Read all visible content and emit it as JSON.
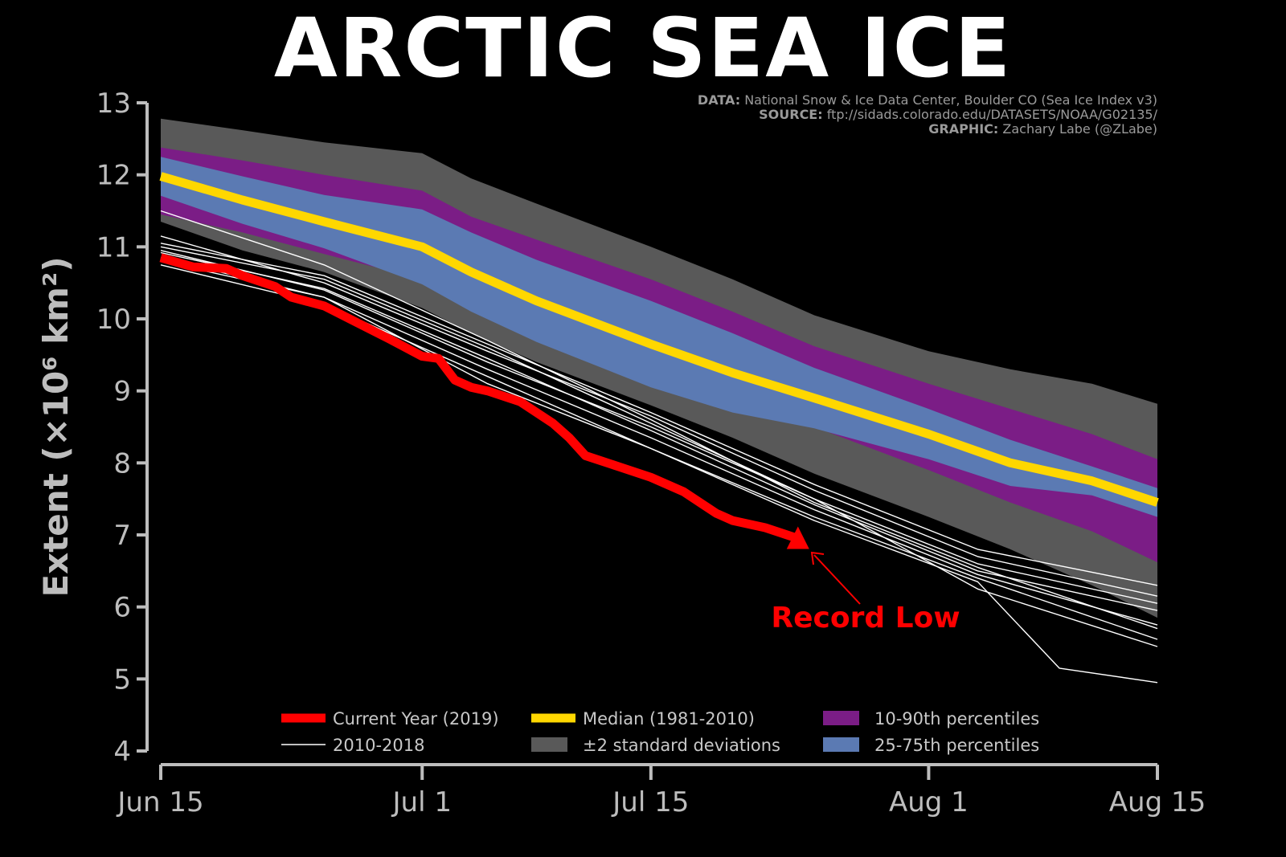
{
  "title": "ARCTIC SEA ICE",
  "credits": {
    "data_label": "DATA:",
    "data_text": "National Snow & Ice Data Center, Boulder CO (Sea Ice Index v3)",
    "source_label": "SOURCE:",
    "source_text": "ftp://sidads.colorado.edu/DATASETS/NOAA/G02135/",
    "graphic_label": "GRAPHIC:",
    "graphic_text": "Zachary Labe (@ZLabe)"
  },
  "annotation": "Record Low",
  "colors": {
    "background": "#000000",
    "current": "#ff0000",
    "median": "#ffd700",
    "p10_90": "#7b1d86",
    "p25_75": "#5b7ab3",
    "std2": "#595959",
    "recent": "#ffffff",
    "axis": "#bdbdbd"
  },
  "chart_data": {
    "type": "line",
    "ylabel": "Extent (×10⁶ km²)",
    "ylim": [
      4,
      13
    ],
    "yticks": [
      4,
      5,
      6,
      7,
      8,
      9,
      10,
      11,
      12,
      13
    ],
    "xlim": [
      0,
      61
    ],
    "xtick_values": [
      0,
      16,
      30,
      47,
      61
    ],
    "xtick_labels": [
      "Jun 15",
      "Jul 1",
      "Jul 15",
      "Aug 1",
      "Aug 15"
    ],
    "x_axis": "day of year, Jun 15 through Aug 15",
    "grid": false,
    "legend_position": "bottom",
    "legend": [
      {
        "label": "Current Year (2019)",
        "kind": "line",
        "color": "#ff0000",
        "width": "thick"
      },
      {
        "label": "2010-2018",
        "kind": "line",
        "color": "#ffffff",
        "width": "thin"
      },
      {
        "label": "Median (1981-2010)",
        "kind": "line",
        "color": "#ffd700",
        "width": "thick"
      },
      {
        "label": "±2 standard deviations",
        "kind": "patch",
        "color": "#595959"
      },
      {
        "label": "10-90th percentiles",
        "kind": "patch",
        "color": "#7b1d86"
      },
      {
        "label": "25-75th percentiles",
        "kind": "patch",
        "color": "#5b7ab3"
      }
    ],
    "bands_x": [
      0,
      5,
      10,
      16,
      19,
      23,
      30,
      35,
      40,
      47,
      52,
      57,
      61
    ],
    "std2_band": {
      "upper": [
        12.78,
        12.62,
        12.45,
        12.3,
        11.95,
        11.6,
        11.0,
        10.55,
        10.05,
        9.55,
        9.3,
        9.1,
        8.82
      ],
      "lower": [
        11.35,
        10.95,
        10.65,
        10.15,
        9.8,
        9.4,
        8.8,
        8.35,
        7.85,
        7.25,
        6.8,
        6.3,
        5.85
      ]
    },
    "p10_90_band": {
      "upper": [
        12.38,
        12.2,
        12.0,
        11.78,
        11.42,
        11.1,
        10.55,
        10.1,
        9.62,
        9.1,
        8.75,
        8.4,
        8.05
      ],
      "lower": [
        11.45,
        11.2,
        10.9,
        10.55,
        10.3,
        10.05,
        9.45,
        9.0,
        8.5,
        7.9,
        7.45,
        7.05,
        6.62
      ]
    },
    "p25_75_band": {
      "upper": [
        12.25,
        11.98,
        11.72,
        11.52,
        11.2,
        10.82,
        10.25,
        9.8,
        9.32,
        8.75,
        8.32,
        7.95,
        7.65
      ]
    },
    "median": {
      "x": [
        0,
        5,
        10,
        16,
        19,
        23,
        30,
        35,
        40,
        47,
        52,
        57,
        61
      ],
      "y": [
        11.98,
        11.65,
        11.35,
        11.0,
        10.65,
        10.25,
        9.65,
        9.25,
        8.9,
        8.4,
        8.0,
        7.75,
        7.45
      ]
    },
    "current_year": {
      "name": "Current Year (2019)",
      "x": [
        0,
        2,
        4,
        5,
        7,
        8,
        10,
        12,
        14,
        16,
        17,
        18,
        19,
        20,
        22,
        24,
        25,
        26,
        28,
        30,
        32,
        34,
        35,
        37,
        39
      ],
      "y": [
        10.85,
        10.72,
        10.7,
        10.6,
        10.45,
        10.3,
        10.18,
        9.95,
        9.72,
        9.48,
        9.45,
        9.15,
        9.05,
        9.0,
        8.85,
        8.55,
        8.35,
        8.1,
        7.95,
        7.8,
        7.6,
        7.3,
        7.2,
        7.1,
        6.95
      ]
    },
    "recent_years": [
      {
        "x": [
          0,
          10,
          20,
          30,
          40,
          50,
          61
        ],
        "y": [
          11.0,
          10.55,
          9.6,
          8.55,
          7.5,
          6.6,
          6.05
        ]
      },
      {
        "x": [
          0,
          10,
          20,
          30,
          40,
          50,
          61
        ],
        "y": [
          10.92,
          10.42,
          9.45,
          8.45,
          7.42,
          6.5,
          5.95
        ]
      },
      {
        "x": [
          0,
          10,
          20,
          30,
          40,
          50,
          61
        ],
        "y": [
          10.8,
          10.3,
          9.3,
          8.35,
          7.35,
          6.45,
          5.75
        ]
      },
      {
        "x": [
          0,
          10,
          20,
          30,
          40,
          50,
          61
        ],
        "y": [
          11.15,
          10.5,
          9.55,
          8.65,
          7.62,
          6.7,
          6.15
        ]
      },
      {
        "x": [
          0,
          10,
          20,
          30,
          40,
          50,
          61
        ],
        "y": [
          10.75,
          10.2,
          9.2,
          8.2,
          7.25,
          6.4,
          5.55
        ]
      },
      {
        "x": [
          0,
          10,
          20,
          30,
          40,
          50,
          61
        ],
        "y": [
          10.95,
          10.4,
          9.4,
          8.5,
          7.5,
          6.25,
          5.45
        ]
      },
      {
        "x": [
          0,
          10,
          20,
          30,
          40,
          50,
          55,
          61
        ],
        "y": [
          10.85,
          10.3,
          9.1,
          8.2,
          7.2,
          6.35,
          5.15,
          4.95
        ]
      },
      {
        "x": [
          0,
          10,
          20,
          30,
          40,
          50,
          61
        ],
        "y": [
          11.05,
          10.6,
          9.65,
          8.7,
          7.7,
          6.8,
          6.3
        ]
      },
      {
        "x": [
          0,
          10,
          20,
          30,
          40,
          50,
          61
        ],
        "y": [
          11.5,
          10.75,
          9.7,
          8.6,
          7.45,
          6.55,
          5.7
        ]
      }
    ]
  }
}
